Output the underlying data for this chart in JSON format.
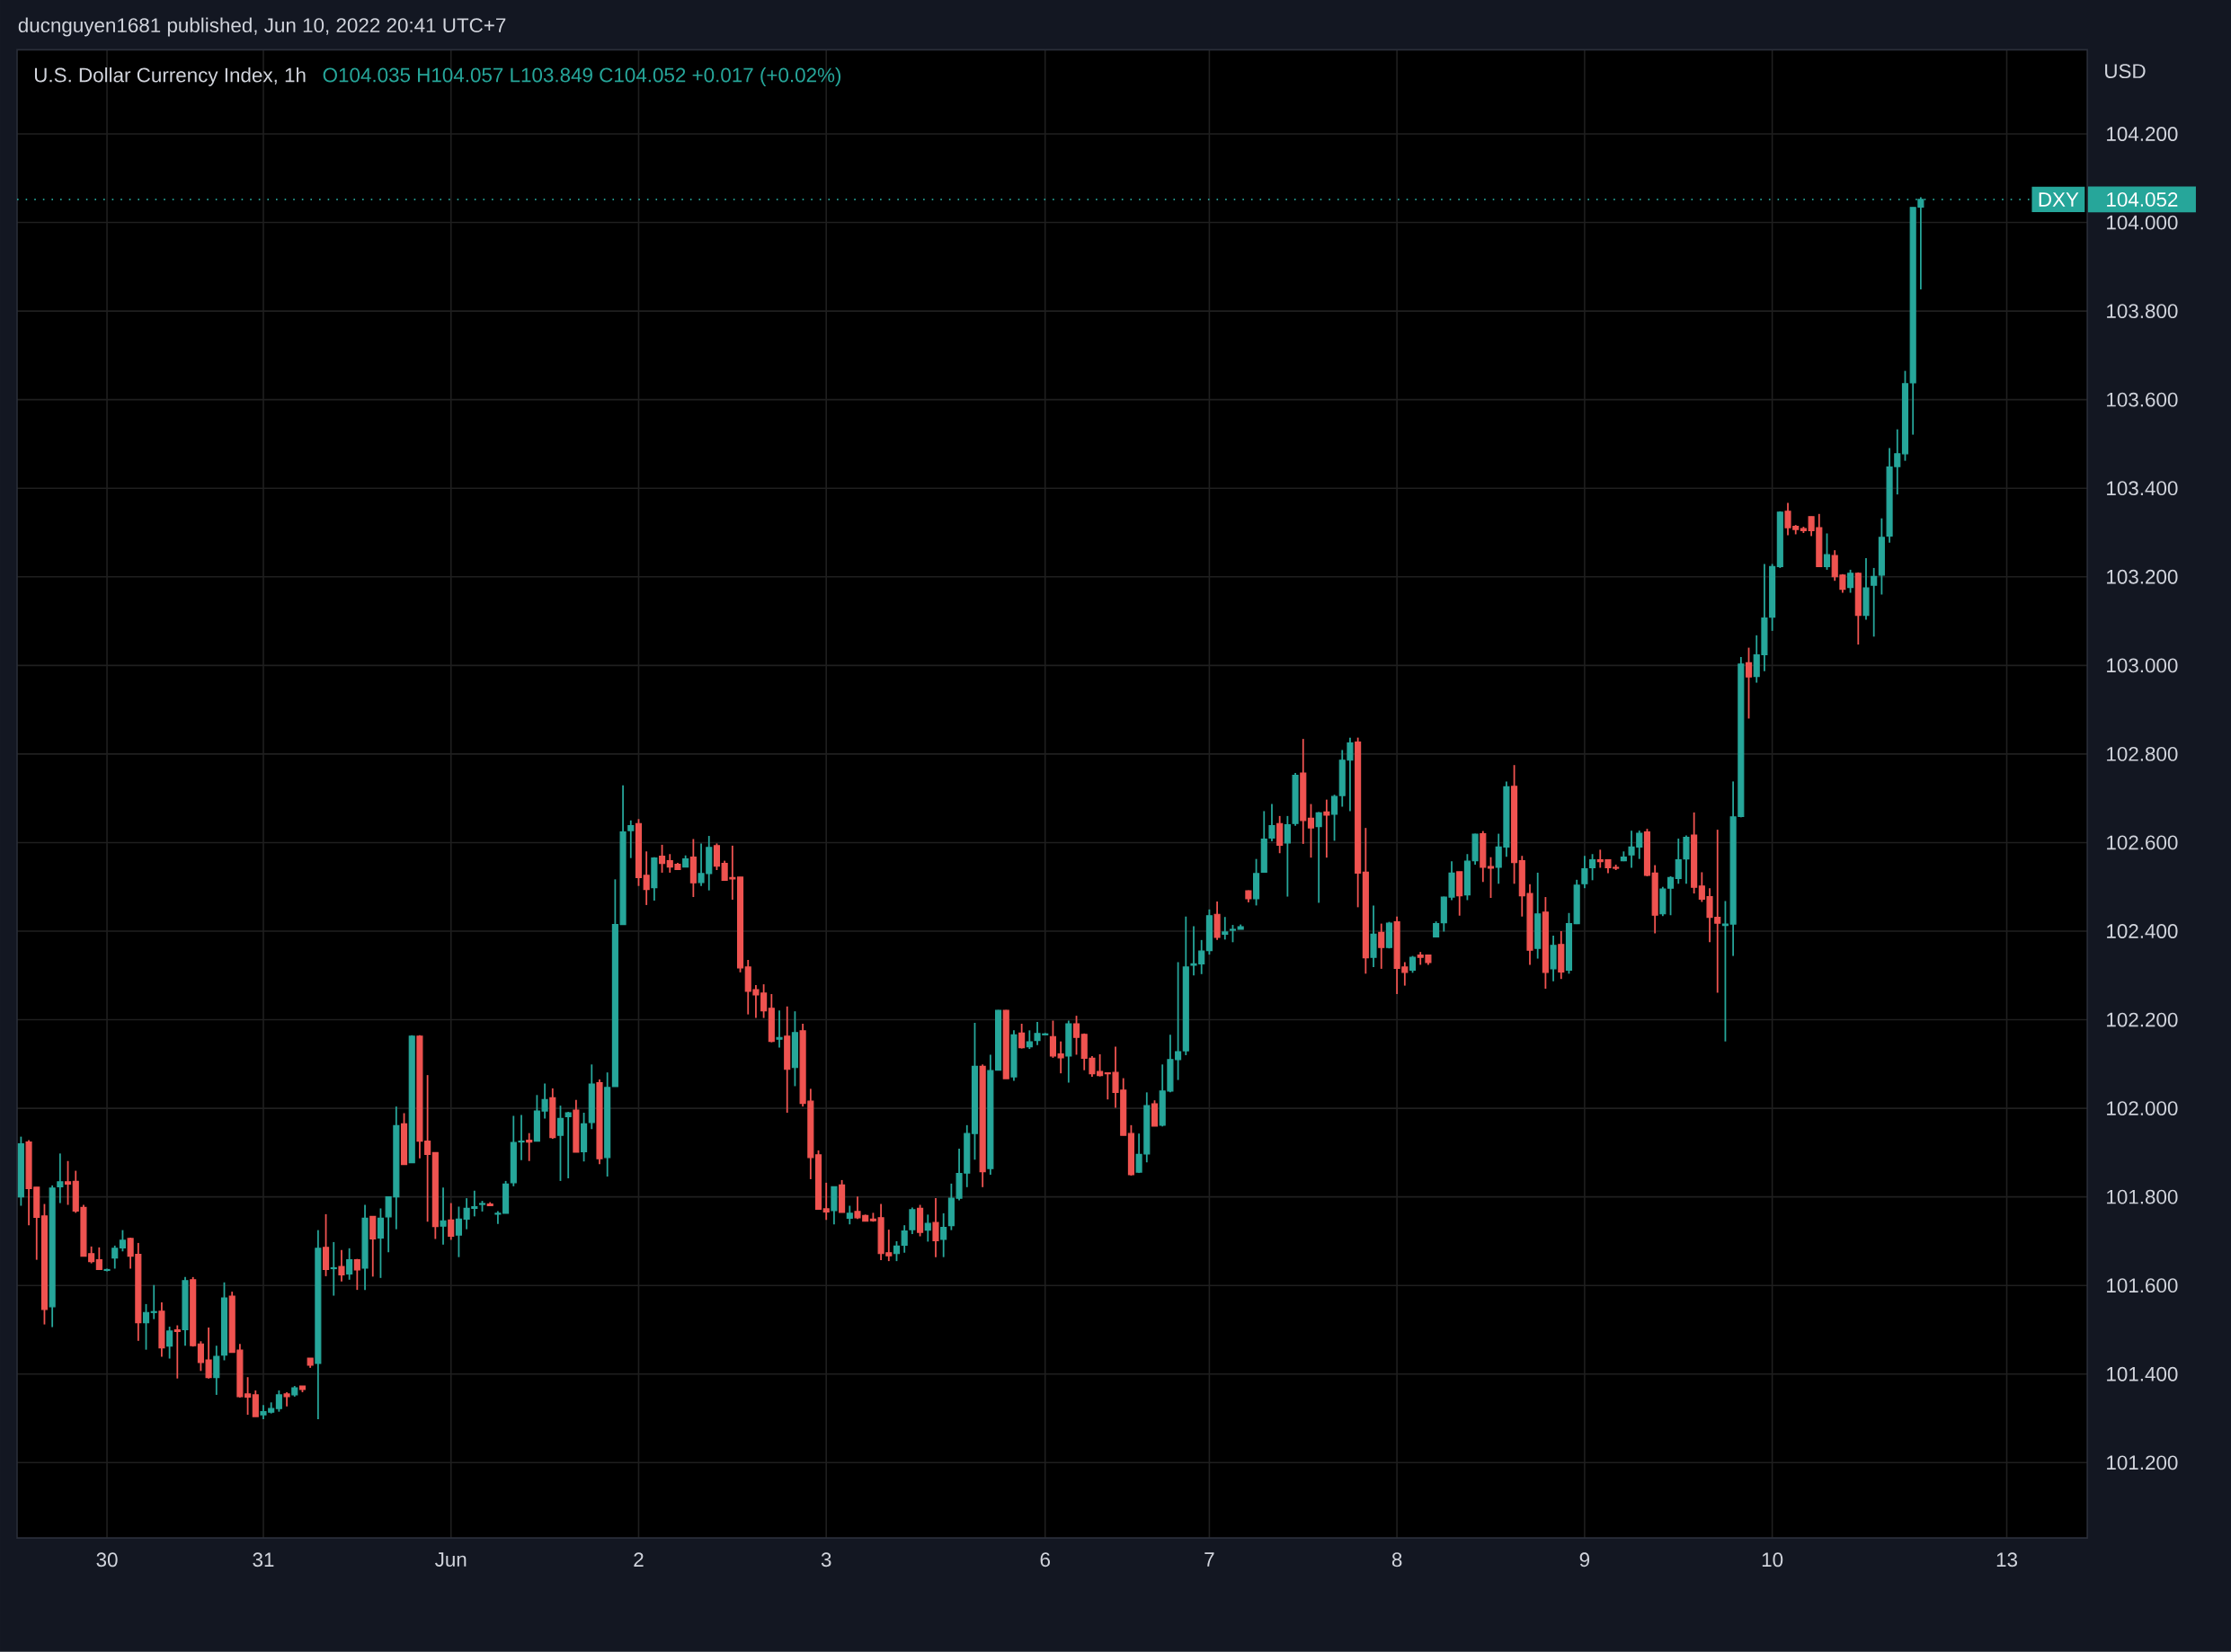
{
  "chart_data": {
    "type": "candlestick",
    "title": "U.S. Dollar Currency Index, 1h",
    "subtitle": "O104.035  H104.057  L103.849  C104.052  +0.017 (+0.02%)",
    "ylabel": "USD",
    "annotations": [
      "ducnguyen1681 published, Jun 10, 2022 20:41 UTC+7",
      "104.052"
    ],
    "colors": [
      "#26a69a",
      "#ef5350",
      "#ef5350",
      "#ef5350",
      "#26a69a",
      "#26a69a",
      "#ef5350",
      "#ef5350",
      "#ef5350",
      "#ef5350",
      "#ef5350",
      "#26a69a",
      "#26a69a",
      "#26a69a",
      "#ef5350",
      "#ef5350",
      "#26a69a",
      "#26a69a",
      "#ef5350",
      "#26a69a",
      "#ef5350",
      "#26a69a",
      "#ef5350",
      "#ef5350",
      "#ef5350",
      "#26a69a",
      "#26a69a",
      "#ef5350",
      "#ef5350",
      "#ef5350",
      "#ef5350",
      "#26a69a",
      "#26a69a",
      "#26a69a",
      "#ef5350",
      "#26a69a",
      "#ef5350",
      "#ef5350",
      "#26a69a",
      "#ef5350",
      "#26a69a",
      "#ef5350",
      "#26a69a",
      "#ef5350",
      "#26a69a",
      "#ef5350",
      "#26a69a",
      "#26a69a",
      "#26a69a",
      "#ef5350",
      "#26a69a",
      "#ef5350",
      "#ef5350",
      "#ef5350",
      "#26a69a",
      "#ef5350",
      "#26a69a",
      "#26a69a",
      "#26a69a",
      "#26a69a",
      "#ef5350",
      "#26a69a",
      "#26a69a",
      "#26a69a",
      "#26a69a",
      "#ef5350",
      "#26a69a",
      "#26a69a",
      "#ef5350",
      "#26a69a",
      "#26a69a",
      "#ef5350",
      "#26a69a",
      "#26a69a",
      "#ef5350",
      "#26a69a",
      "#26a69a",
      "#26a69a",
      "#26a69a",
      "#ef5350",
      "#ef5350",
      "#26a69a",
      "#ef5350",
      "#ef5350",
      "#ef5350",
      "#26a69a",
      "#ef5350",
      "#26a69a",
      "#26a69a",
      "#ef5350",
      "#ef5350",
      "#ef5350",
      "#ef5350",
      "#ef5350",
      "#ef5350",
      "#ef5350",
      "#ef5350",
      "#26a69a",
      "#ef5350",
      "#26a69a",
      "#ef5350",
      "#ef5350",
      "#ef5350",
      "#ef5350",
      "#26a69a",
      "#ef5350",
      "#26a69a",
      "#ef5350",
      "#ef5350",
      "#ef5350",
      "#ef5350",
      "#ef5350",
      "#26a69a",
      "#26a69a",
      "#26a69a",
      "#ef5350",
      "#26a69a",
      "#ef5350",
      "#26a69a",
      "#26a69a",
      "#26a69a",
      "#26a69a",
      "#26a69a",
      "#ef5350",
      "#26a69a",
      "#26a69a",
      "#ef5350",
      "#26a69a",
      "#ef5350",
      "#26a69a",
      "#26a69a",
      "#26a69a",
      "#ef5350",
      "#ef5350",
      "#26a69a",
      "#ef5350",
      "#ef5350",
      "#ef5350",
      "#ef5350",
      "#ef5350",
      "#ef5350",
      "#ef5350",
      "#ef5350",
      "#26a69a",
      "#26a69a",
      "#ef5350",
      "#26a69a",
      "#26a69a",
      "#26a69a",
      "#26a69a",
      "#26a69a",
      "#26a69a",
      "#26a69a",
      "#ef5350",
      "#26a69a",
      "#26a69a",
      "#26a69a",
      "#ef5350",
      "#26a69a",
      "#26a69a",
      "#26a69a",
      "#ef5350",
      "#26a69a",
      "#26a69a",
      "#ef5350",
      "#ef5350",
      "#26a69a",
      "#ef5350",
      "#26a69a",
      "#26a69a",
      "#26a69a",
      "#ef5350",
      "#ef5350",
      "#26a69a",
      "#ef5350",
      "#26a69a",
      "#ef5350",
      "#ef5350",
      "#26a69a",
      "#ef5350",
      "#ef5350",
      "#26a69a",
      "#26a69a",
      "#26a69a",
      "#ef5350",
      "#26a69a",
      "#26a69a",
      "#ef5350",
      "#ef5350",
      "#26a69a",
      "#26a69a",
      "#ef5350",
      "#ef5350",
      "#ef5350",
      "#26a69a",
      "#ef5350",
      "#26a69a",
      "#ef5350",
      "#26a69a",
      "#26a69a",
      "#26a69a",
      "#26a69a",
      "#ef5350",
      "#ef5350",
      "#ef5350",
      "#26a69a",
      "#26a69a",
      "#26a69a",
      "#ef5350",
      "#ef5350",
      "#26a69a",
      "#26a69a",
      "#26a69a",
      "#26a69a",
      "#ef5350",
      "#ef5350",
      "#ef5350",
      "#ef5350",
      "#26a69a",
      "#26a69a",
      "#26a69a",
      "#ef5350",
      "#26a69a",
      "#26a69a",
      "#26a69a",
      "#26a69a",
      "#ef5350",
      "#ef5350",
      "#ef5350",
      "#ef5350",
      "#ef5350",
      "#26a69a",
      "#ef5350",
      "#ef5350",
      "#26a69a",
      "#ef5350",
      "#26a69a",
      "#26a69a",
      "#26a69a",
      "#26a69a",
      "#26a69a",
      "#26a69a",
      "#26a69a",
      "#26a69a",
      null,
      null,
      null,
      null,
      null,
      null,
      null,
      null,
      null,
      null,
      null,
      null,
      null,
      null,
      null,
      null,
      null,
      null,
      null,
      null,
      null
    ],
    "grid": true,
    "categories": [
      null,
      null,
      null,
      null,
      null,
      null,
      null,
      null,
      null,
      null,
      null,
      "30",
      null,
      null,
      null,
      null,
      null,
      null,
      null,
      null,
      null,
      null,
      null,
      null,
      null,
      null,
      null,
      null,
      null,
      null,
      null,
      "31",
      null,
      null,
      null,
      null,
      null,
      null,
      null,
      null,
      null,
      null,
      null,
      null,
      null,
      null,
      null,
      null,
      null,
      null,
      null,
      null,
      null,
      null,
      null,
      "Jun",
      null,
      null,
      null,
      null,
      null,
      null,
      null,
      null,
      null,
      null,
      null,
      null,
      null,
      null,
      null,
      null,
      null,
      null,
      null,
      null,
      null,
      null,
      null,
      "2",
      null,
      null,
      null,
      null,
      null,
      null,
      null,
      null,
      null,
      null,
      null,
      null,
      null,
      null,
      null,
      null,
      null,
      null,
      null,
      null,
      null,
      null,
      null,
      "3",
      null,
      null,
      null,
      null,
      null,
      null,
      null,
      null,
      null,
      null,
      null,
      null,
      null,
      null,
      null,
      null,
      null,
      null,
      null,
      null,
      null,
      null,
      null,
      null,
      null,
      null,
      null,
      "6",
      null,
      null,
      null,
      null,
      null,
      null,
      null,
      null,
      null,
      null,
      null,
      null,
      null,
      null,
      null,
      null,
      null,
      null,
      null,
      null,
      "7",
      null,
      null,
      null,
      null,
      null,
      null,
      null,
      null,
      null,
      null,
      null,
      null,
      null,
      null,
      null,
      null,
      null,
      null,
      null,
      null,
      null,
      null,
      null,
      "8",
      null,
      null,
      null,
      null,
      null,
      null,
      null,
      null,
      null,
      null,
      null,
      null,
      null,
      null,
      null,
      null,
      null,
      null,
      null,
      null,
      null,
      null,
      null,
      "9",
      null,
      null,
      null,
      null,
      null,
      null,
      null,
      null,
      null,
      null,
      null,
      null,
      null,
      null,
      null,
      null,
      null,
      null,
      null,
      null,
      null,
      null,
      null,
      "10",
      null,
      null,
      null,
      null,
      null,
      null,
      null,
      null,
      null,
      null,
      null,
      null,
      null,
      null,
      null,
      null,
      null,
      null,
      null,
      null,
      null,
      null,
      null,
      null,
      null,
      null,
      null,
      null,
      null,
      "13",
      null,
      null,
      null,
      null,
      null,
      null,
      null,
      null,
      null,
      null
    ],
    "ylim": [
      101.03,
      104.39
    ],
    "yticks": [
      {
        "value": 101.2,
        "label": "101.200"
      },
      {
        "value": 101.4,
        "label": "101.400"
      },
      {
        "value": 101.6,
        "label": "101.600"
      },
      {
        "value": 101.8,
        "label": "101.800"
      },
      {
        "value": 102.0,
        "label": "102.000"
      },
      {
        "value": 102.2,
        "label": "102.200"
      },
      {
        "value": 102.4,
        "label": "102.400"
      },
      {
        "value": 102.6,
        "label": "102.600"
      },
      {
        "value": 102.8,
        "label": "102.800"
      },
      {
        "value": 103.0,
        "label": "103.000"
      },
      {
        "value": 103.2,
        "label": "103.200"
      },
      {
        "value": 103.4,
        "label": "103.400"
      },
      {
        "value": 103.6,
        "label": "103.600"
      },
      {
        "value": 103.8,
        "label": "103.800"
      },
      {
        "value": 104.0,
        "label": "104.000"
      },
      {
        "value": 104.2,
        "label": "104.200"
      }
    ],
    "ref_lines": [
      {
        "axis": "y",
        "value": 104.052,
        "label": "DXY",
        "color": "#26a69a",
        "line_style": "dotted"
      }
    ],
    "ohlc": [
      [
        101.8,
        101.936,
        101.78,
        101.92
      ],
      [
        101.924,
        101.928,
        101.736,
        101.819
      ],
      [
        101.822,
        101.822,
        101.658,
        101.754
      ],
      [
        101.757,
        101.784,
        101.512,
        101.546
      ],
      [
        101.552,
        101.826,
        101.506,
        101.82
      ],
      [
        101.823,
        101.898,
        101.786,
        101.834
      ],
      [
        101.834,
        101.881,
        101.782,
        101.829
      ],
      [
        101.835,
        101.859,
        101.764,
        101.768
      ],
      [
        101.776,
        101.782,
        101.666,
        101.666
      ],
      [
        101.672,
        101.688,
        101.65,
        101.654
      ],
      [
        101.658,
        101.686,
        101.636,
        101.636
      ],
      [
        101.634,
        101.638,
        101.632,
        101.636
      ],
      [
        101.662,
        101.69,
        101.638,
        101.684
      ],
      [
        101.685,
        101.725,
        101.677,
        101.702
      ],
      [
        101.706,
        101.708,
        101.638,
        101.666
      ],
      [
        101.67,
        101.696,
        101.475,
        101.516
      ],
      [
        101.516,
        101.558,
        101.455,
        101.539
      ],
      [
        101.539,
        101.601,
        101.524,
        101.541
      ],
      [
        101.542,
        101.562,
        101.439,
        101.459
      ],
      [
        101.463,
        101.507,
        101.435,
        101.497
      ],
      [
        101.5,
        101.51,
        101.39,
        101.496
      ],
      [
        101.5,
        101.619,
        101.464,
        101.611
      ],
      [
        101.613,
        101.619,
        101.462,
        101.464
      ],
      [
        101.468,
        101.474,
        101.407,
        101.426
      ],
      [
        101.432,
        101.505,
        101.39,
        101.392
      ],
      [
        101.392,
        101.464,
        101.353,
        101.44
      ],
      [
        101.443,
        101.607,
        101.431,
        101.572
      ],
      [
        101.576,
        101.586,
        101.449,
        101.449
      ],
      [
        101.454,
        101.468,
        101.347,
        101.349
      ],
      [
        101.355,
        101.393,
        101.308,
        101.348
      ],
      [
        101.353,
        101.363,
        101.304,
        101.304
      ],
      [
        101.308,
        101.33,
        101.298,
        101.315
      ],
      [
        101.314,
        101.336,
        101.311,
        101.322
      ],
      [
        101.322,
        101.363,
        101.315,
        101.353
      ],
      [
        101.355,
        101.359,
        101.327,
        101.349
      ],
      [
        101.353,
        101.373,
        101.349,
        101.369
      ],
      [
        101.373,
        101.373,
        101.359,
        101.365
      ],
      [
        101.436,
        101.436,
        101.414,
        101.42
      ],
      [
        101.424,
        101.725,
        101.298,
        101.684
      ],
      [
        101.686,
        101.761,
        101.621,
        101.636
      ],
      [
        101.638,
        101.698,
        101.577,
        101.64
      ],
      [
        101.643,
        101.68,
        101.609,
        101.624
      ],
      [
        101.626,
        101.684,
        101.613,
        101.658
      ],
      [
        101.658,
        101.66,
        101.59,
        101.635
      ],
      [
        101.639,
        101.782,
        101.59,
        101.752
      ],
      [
        101.756,
        101.756,
        101.62,
        101.705
      ],
      [
        101.707,
        101.774,
        101.617,
        101.752
      ],
      [
        101.755,
        101.8,
        101.675,
        101.8
      ],
      [
        101.8,
        102.004,
        101.727,
        101.961
      ],
      [
        101.965,
        101.989,
        101.873,
        101.873
      ],
      [
        101.877,
        102.165,
        101.877,
        102.163
      ],
      [
        102.163,
        102.165,
        101.887,
        101.926
      ],
      [
        101.926,
        102.075,
        101.744,
        101.896
      ],
      [
        101.9,
        101.9,
        101.705,
        101.733
      ],
      [
        101.734,
        101.821,
        101.692,
        101.746
      ],
      [
        101.748,
        101.786,
        101.703,
        101.711
      ],
      [
        101.714,
        101.778,
        101.664,
        101.75
      ],
      [
        101.75,
        101.797,
        101.727,
        101.774
      ],
      [
        101.774,
        101.814,
        101.756,
        101.778
      ],
      [
        101.783,
        101.791,
        101.767,
        101.785
      ],
      [
        101.784,
        101.788,
        101.78,
        101.78
      ],
      [
        101.761,
        101.768,
        101.739,
        101.763
      ],
      [
        101.763,
        101.836,
        101.763,
        101.829
      ],
      [
        101.832,
        101.983,
        101.824,
        101.923
      ],
      [
        101.924,
        101.985,
        101.883,
        101.926
      ],
      [
        101.928,
        101.944,
        101.881,
        101.924
      ],
      [
        101.926,
        102.03,
        101.926,
        101.994
      ],
      [
        101.994,
        102.056,
        101.977,
        102.02
      ],
      [
        102.024,
        102.045,
        101.931,
        101.934
      ],
      [
        101.939,
        102.006,
        101.836,
        101.977
      ],
      [
        101.981,
        101.992,
        101.842,
        101.99
      ],
      [
        101.996,
        102.019,
        101.901,
        101.901
      ],
      [
        101.902,
        101.99,
        101.88,
        101.965
      ],
      [
        101.968,
        102.099,
        101.953,
        102.055
      ],
      [
        102.058,
        102.065,
        101.874,
        101.886
      ],
      [
        101.889,
        102.081,
        101.846,
        102.047
      ],
      [
        102.049,
        102.517,
        102.049,
        102.415
      ],
      [
        102.415,
        102.729,
        102.415,
        102.624
      ],
      [
        102.627,
        102.65,
        102.565,
        102.638
      ],
      [
        102.643,
        102.653,
        102.502,
        102.521
      ],
      [
        102.526,
        102.58,
        102.459,
        102.494
      ],
      [
        102.498,
        102.567,
        102.469,
        102.565
      ],
      [
        102.569,
        102.595,
        102.532,
        102.553
      ],
      [
        102.559,
        102.574,
        102.532,
        102.545
      ],
      [
        102.551,
        102.554,
        102.539,
        102.539
      ],
      [
        102.545,
        102.571,
        102.545,
        102.563
      ],
      [
        102.567,
        102.608,
        102.477,
        102.509
      ],
      [
        102.51,
        102.598,
        102.502,
        102.53
      ],
      [
        102.53,
        102.615,
        102.492,
        102.589
      ],
      [
        102.593,
        102.598,
        102.538,
        102.547
      ],
      [
        102.553,
        102.559,
        102.515,
        102.515
      ],
      [
        102.521,
        102.593,
        102.471,
        102.518
      ],
      [
        102.522,
        102.522,
        102.307,
        102.317
      ],
      [
        102.319,
        102.335,
        102.212,
        102.264
      ],
      [
        102.268,
        102.278,
        102.204,
        102.256
      ],
      [
        102.26,
        102.28,
        102.204,
        102.22
      ],
      [
        102.226,
        102.258,
        102.149,
        102.151
      ],
      [
        102.156,
        102.221,
        102.137,
        102.16
      ],
      [
        102.163,
        102.23,
        101.99,
        102.088
      ],
      [
        102.092,
        102.219,
        102.05,
        102.171
      ],
      [
        102.175,
        102.191,
        102.004,
        102.011
      ],
      [
        102.016,
        102.044,
        101.84,
        101.889
      ],
      [
        101.895,
        101.905,
        101.772,
        101.772
      ],
      [
        101.773,
        101.832,
        101.748,
        101.766
      ],
      [
        101.769,
        101.823,
        101.738,
        101.823
      ],
      [
        101.827,
        101.838,
        101.765,
        101.765
      ],
      [
        101.752,
        101.78,
        101.738,
        101.763
      ],
      [
        101.767,
        101.801,
        101.75,
        101.753
      ],
      [
        101.758,
        101.76,
        101.745,
        101.745
      ],
      [
        101.75,
        101.764,
        101.744,
        101.746
      ],
      [
        101.753,
        101.784,
        101.657,
        101.672
      ],
      [
        101.674,
        101.726,
        101.655,
        101.667
      ],
      [
        101.672,
        101.7,
        101.655,
        101.689
      ],
      [
        101.691,
        101.736,
        101.674,
        101.723
      ],
      [
        101.726,
        101.776,
        101.716,
        101.771
      ],
      [
        101.774,
        101.782,
        101.711,
        101.72
      ],
      [
        101.725,
        101.76,
        101.699,
        101.74
      ],
      [
        101.742,
        101.797,
        101.664,
        101.701
      ],
      [
        101.704,
        101.763,
        101.664,
        101.731
      ],
      [
        101.735,
        101.83,
        101.725,
        101.797
      ],
      [
        101.797,
        101.909,
        101.792,
        101.853
      ],
      [
        101.854,
        101.962,
        101.822,
        101.943
      ],
      [
        101.943,
        102.193,
        101.884,
        102.095
      ],
      [
        102.095,
        102.099,
        101.822,
        101.857
      ],
      [
        101.864,
        102.121,
        101.85,
        102.085
      ],
      [
        102.086,
        102.222,
        102.086,
        102.221
      ],
      [
        102.221,
        102.222,
        102.067,
        102.067
      ],
      [
        102.071,
        102.176,
        102.062,
        102.166
      ],
      [
        102.17,
        102.191,
        102.135,
        102.137
      ],
      [
        102.139,
        102.176,
        102.134,
        102.15
      ],
      [
        102.153,
        102.195,
        102.143,
        102.169
      ],
      [
        102.166,
        102.17,
        102.165,
        102.168
      ],
      [
        102.162,
        102.198,
        102.114,
        102.118
      ],
      [
        102.123,
        102.151,
        102.079,
        102.114
      ],
      [
        102.118,
        102.198,
        102.058,
        102.191
      ],
      [
        102.191,
        102.209,
        102.121,
        102.16
      ],
      [
        102.167,
        102.169,
        102.086,
        102.113
      ],
      [
        102.113,
        102.118,
        102.071,
        102.078
      ],
      [
        102.083,
        102.122,
        102.072,
        102.074
      ],
      [
        102.08,
        102.08,
        102.02,
        102.078
      ],
      [
        102.081,
        102.139,
        102.001,
        102.036
      ],
      [
        102.041,
        102.068,
        101.939,
        101.939
      ],
      [
        101.943,
        101.962,
        101.848,
        101.85
      ],
      [
        101.856,
        101.943,
        101.854,
        101.896
      ],
      [
        101.897,
        102.036,
        101.878,
        102.006
      ],
      [
        102.01,
        102.018,
        101.96,
        101.96
      ],
      [
        101.962,
        102.099,
        101.959,
        102.039
      ],
      [
        102.039,
        102.166,
        102.036,
        102.11
      ],
      [
        102.11,
        102.33,
        102.064,
        102.128
      ],
      [
        102.13,
        102.433,
        102.12,
        102.319
      ],
      [
        102.323,
        102.411,
        102.3,
        102.326
      ],
      [
        102.326,
        102.38,
        102.303,
        102.355
      ],
      [
        102.356,
        102.449,
        102.347,
        102.435
      ],
      [
        102.438,
        102.467,
        102.38,
        102.386
      ],
      [
        102.393,
        102.432,
        102.381,
        102.398
      ],
      [
        102.402,
        102.414,
        102.375,
        102.404
      ],
      [
        102.404,
        102.415,
        102.404,
        102.41
      ],
      [
        102.491,
        102.492,
        102.465,
        102.473
      ],
      [
        102.473,
        102.563,
        102.458,
        102.53
      ],
      [
        102.533,
        102.671,
        102.533,
        102.608
      ],
      [
        102.61,
        102.687,
        102.603,
        102.638
      ],
      [
        102.643,
        102.66,
        102.576,
        102.594
      ],
      [
        102.599,
        102.66,
        102.478,
        102.64
      ],
      [
        102.643,
        102.757,
        102.638,
        102.752
      ],
      [
        102.757,
        102.834,
        102.597,
        102.65
      ],
      [
        102.655,
        102.687,
        102.566,
        102.633
      ],
      [
        102.636,
        102.669,
        102.464,
        102.667
      ],
      [
        102.669,
        102.697,
        102.566,
        102.662
      ],
      [
        102.664,
        102.708,
        102.604,
        102.704
      ],
      [
        102.706,
        102.809,
        102.681,
        102.786
      ],
      [
        102.786,
        102.837,
        102.671,
        102.825
      ],
      [
        102.827,
        102.837,
        102.454,
        102.531
      ],
      [
        102.533,
        102.633,
        102.304,
        102.34
      ],
      [
        102.341,
        102.458,
        102.319,
        102.393
      ],
      [
        102.397,
        102.417,
        102.315,
        102.363
      ],
      [
        102.363,
        102.421,
        102.361,
        102.418
      ],
      [
        102.421,
        102.433,
        102.258,
        102.316
      ],
      [
        102.319,
        102.33,
        102.277,
        102.307
      ],
      [
        102.312,
        102.344,
        102.306,
        102.341
      ],
      [
        102.346,
        102.353,
        102.324,
        102.341
      ],
      [
        102.346,
        102.346,
        102.324,
        102.329
      ],
      [
        102.387,
        102.422,
        102.387,
        102.417
      ],
      [
        102.419,
        102.478,
        102.399,
        102.477
      ],
      [
        102.477,
        102.558,
        102.47,
        102.531
      ],
      [
        102.534,
        102.534,
        102.435,
        102.48
      ],
      [
        102.482,
        102.574,
        102.47,
        102.558
      ],
      [
        102.559,
        102.62,
        102.55,
        102.619
      ],
      [
        102.62,
        102.626,
        102.511,
        102.544
      ],
      [
        102.546,
        102.567,
        102.475,
        102.542
      ],
      [
        102.544,
        102.62,
        102.507,
        102.59
      ],
      [
        102.59,
        102.738,
        102.568,
        102.726
      ],
      [
        102.727,
        102.775,
        102.507,
        102.555
      ],
      [
        102.559,
        102.57,
        102.433,
        102.48
      ],
      [
        102.485,
        102.506,
        102.324,
        102.357
      ],
      [
        102.361,
        102.532,
        102.338,
        102.439
      ],
      [
        102.443,
        102.477,
        102.27,
        102.307
      ],
      [
        102.315,
        102.39,
        102.287,
        102.368
      ],
      [
        102.37,
        102.4,
        102.292,
        102.308
      ],
      [
        102.312,
        102.441,
        102.304,
        102.417
      ],
      [
        102.417,
        102.516,
        102.416,
        102.504
      ],
      [
        102.507,
        102.57,
        102.497,
        102.541
      ],
      [
        102.543,
        102.574,
        102.515,
        102.561
      ],
      [
        102.561,
        102.584,
        102.543,
        102.557
      ],
      [
        102.561,
        102.561,
        102.531,
        102.543
      ],
      [
        102.544,
        102.55,
        102.538,
        102.542
      ],
      [
        102.559,
        102.58,
        102.558,
        102.567
      ],
      [
        102.572,
        102.627,
        102.543,
        102.59
      ],
      [
        102.59,
        102.627,
        102.563,
        102.621
      ],
      [
        102.624,
        102.631,
        102.524,
        102.526
      ],
      [
        102.531,
        102.549,
        102.395,
        102.436
      ],
      [
        102.439,
        102.5,
        102.434,
        102.495
      ],
      [
        102.497,
        102.524,
        102.436,
        102.521
      ],
      [
        102.519,
        102.609,
        102.507,
        102.561
      ],
      [
        102.563,
        102.616,
        102.507,
        102.612
      ],
      [
        102.617,
        102.668,
        102.485,
        102.499
      ],
      [
        102.502,
        102.533,
        102.466,
        102.472
      ],
      [
        102.478,
        102.497,
        102.375,
        102.431
      ],
      [
        102.431,
        102.629,
        102.261,
        102.418
      ],
      [
        102.413,
        102.468,
        102.151,
        102.416
      ],
      [
        102.416,
        102.738,
        102.344,
        102.658
      ],
      [
        102.659,
        103.019,
        102.657,
        103.003
      ],
      [
        103.006,
        103.04,
        102.88,
        102.974
      ],
      [
        102.975,
        103.068,
        102.961,
        103.024
      ],
      [
        103.024,
        103.229,
        102.987,
        103.107
      ],
      [
        103.109,
        103.229,
        103.078,
        103.223
      ],
      [
        103.223,
        103.348,
        103.22,
        103.346
      ],
      [
        103.348,
        103.367,
        103.294,
        103.311
      ],
      [
        103.314,
        103.317,
        103.296,
        103.307
      ],
      [
        103.309,
        103.313,
        103.299,
        103.304
      ],
      [
        103.336,
        103.336,
        103.292,
        103.304
      ],
      [
        103.311,
        103.342,
        103.223,
        103.223
      ],
      [
        103.223,
        103.298,
        103.216,
        103.25
      ],
      [
        103.248,
        103.26,
        103.191,
        103.2
      ],
      [
        103.204,
        103.206,
        103.164,
        103.172
      ],
      [
        103.176,
        103.216,
        103.164,
        103.208
      ],
      [
        103.208,
        103.21,
        103.047,
        103.113
      ],
      [
        103.113,
        103.242,
        103.103,
        103.175
      ],
      [
        103.181,
        103.22,
        103.065,
        103.201
      ],
      [
        103.204,
        103.332,
        103.16,
        103.289
      ],
      [
        103.292,
        103.491,
        103.277,
        103.448
      ],
      [
        103.449,
        103.533,
        103.386,
        103.478
      ],
      [
        103.478,
        103.665,
        103.462,
        103.636
      ],
      [
        103.638,
        104.034,
        103.521,
        104.034
      ],
      [
        104.035,
        104.057,
        103.849,
        104.052
      ],
      null,
      null,
      null,
      null,
      null,
      null,
      null,
      null,
      null,
      null,
      null,
      null,
      null,
      null,
      null,
      null,
      null,
      null,
      null,
      null,
      null
    ]
  }
}
